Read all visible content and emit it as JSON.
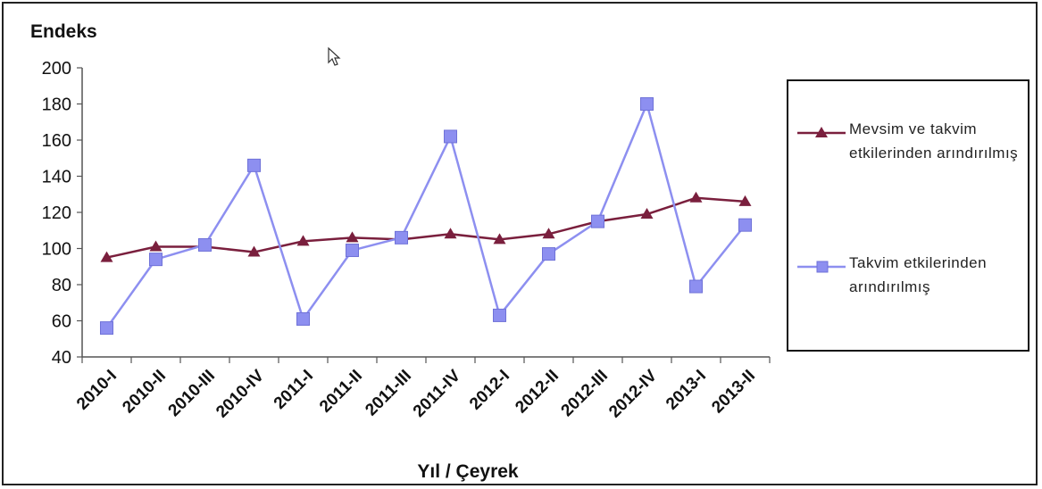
{
  "chart_data": {
    "type": "line",
    "ylabel": "Endeks",
    "xlabel": "Yıl / Çeyrek",
    "categories": [
      "2010-I",
      "2010-II",
      "2010-III",
      "2010-IV",
      "2011-I",
      "2011-II",
      "2011-III",
      "2011-IV",
      "2012-I",
      "2012-II",
      "2012-III",
      "2012-IV",
      "2013-I",
      "2013-II"
    ],
    "ylim": [
      40,
      200
    ],
    "yticks": [
      40,
      60,
      80,
      100,
      120,
      140,
      160,
      180,
      200
    ],
    "grid": false,
    "legend_position": "right",
    "series": [
      {
        "name": "Mevsim ve takvim etkilerinden arındırılmış",
        "color": "#7a1f3d",
        "marker": "triangle",
        "values": [
          95,
          101,
          101,
          98,
          104,
          106,
          105,
          108,
          105,
          108,
          115,
          119,
          128,
          126
        ]
      },
      {
        "name": "Takvim etkilerinden arındırılmış",
        "color": "#8d8ff0",
        "marker": "square",
        "values": [
          56,
          94,
          102,
          146,
          61,
          99,
          106,
          162,
          63,
          97,
          115,
          180,
          79,
          113
        ]
      }
    ]
  }
}
